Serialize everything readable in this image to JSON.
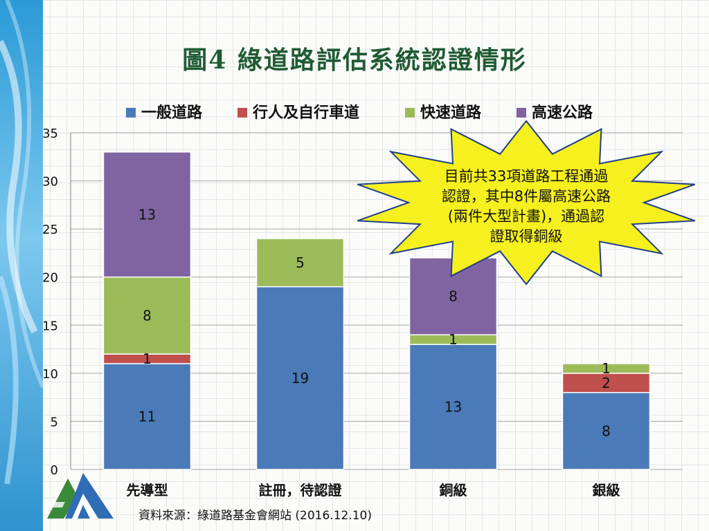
{
  "slide": {
    "title": "圖4 綠道路評估系統認證情形",
    "source": "資料來源：綠道路基金會網站 (2016.12.10)",
    "callout": [
      "目前共33項道路工程通過",
      "認證，其中8件屬高速公路",
      "(兩件大型計畫)，通過認",
      "證取得銅級"
    ]
  },
  "chart_data": {
    "type": "bar",
    "stacked": true,
    "categories": [
      "先導型",
      "註冊，待認證",
      "銅級",
      "銀級"
    ],
    "series": [
      {
        "name": "一般道路",
        "values": [
          11,
          19,
          13,
          8
        ],
        "color": "#4a7ab8"
      },
      {
        "name": "行人及自行車道",
        "values": [
          1,
          0,
          0,
          2
        ],
        "color": "#c0504d"
      },
      {
        "name": "快速道路",
        "values": [
          8,
          5,
          1,
          1
        ],
        "color": "#9bbb59"
      },
      {
        "name": "高速公路",
        "values": [
          13,
          0,
          8,
          0
        ],
        "color": "#8064a2"
      }
    ],
    "ylim": [
      0,
      35
    ],
    "yticks": [
      0,
      5,
      10,
      15,
      20,
      25,
      30,
      35
    ],
    "grid": true,
    "legend": "top",
    "xlabel": "",
    "ylabel": ""
  },
  "colors": {
    "title": "#1f5b33",
    "callout_fill": "#f5f01e",
    "callout_stroke": "#1f3f8a",
    "gridline": "#a6a6a6"
  },
  "icons": [
    "wave-decoration",
    "green-road-logo-icon"
  ]
}
